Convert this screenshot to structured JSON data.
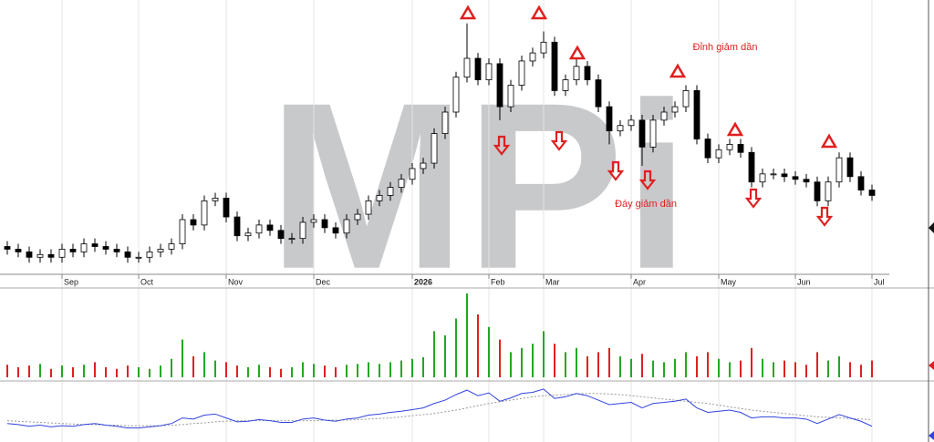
{
  "chart_data": {
    "type": "candlestick",
    "watermark": "MPi",
    "annotations": [
      "Đỉnh giảm dần",
      "Đáy giảm dần"
    ],
    "categories": [
      null,
      null,
      null,
      null,
      null,
      "Sep",
      null,
      null,
      null,
      null,
      null,
      null,
      "Oct",
      null,
      null,
      null,
      null,
      null,
      null,
      null,
      "Nov",
      null,
      null,
      null,
      null,
      null,
      null,
      null,
      "Dec",
      null,
      null,
      null,
      null,
      null,
      null,
      null,
      null,
      "2026",
      null,
      null,
      null,
      null,
      null,
      null,
      "Feb",
      null,
      null,
      null,
      null,
      "Mar",
      null,
      null,
      null,
      null,
      null,
      null,
      null,
      "Apr",
      null,
      null,
      null,
      null,
      null,
      null,
      null,
      "May",
      null,
      null,
      null,
      null,
      null,
      null,
      "Jun",
      null,
      null,
      null,
      null,
      null,
      null,
      "Jul"
    ],
    "open": [
      10,
      9,
      8,
      6,
      7,
      6,
      9,
      8,
      11,
      10,
      9,
      8,
      6,
      6,
      8,
      9,
      11,
      20,
      18,
      27,
      28,
      21,
      14,
      15,
      18,
      16,
      13,
      13,
      19,
      20,
      17,
      15,
      20,
      22,
      27,
      29,
      32,
      35,
      39,
      41,
      52,
      60,
      73,
      80,
      72,
      78,
      62,
      70,
      79,
      82,
      86,
      68,
      72,
      77,
      72,
      62,
      53,
      55,
      57,
      47,
      57,
      60,
      62,
      68,
      50,
      43,
      46,
      48,
      45,
      34,
      37,
      37,
      36,
      35,
      34,
      27,
      34,
      43,
      36,
      31
    ],
    "high": [
      12,
      11,
      10,
      9,
      9,
      11,
      11,
      13,
      13,
      12,
      11,
      10,
      8,
      10,
      11,
      13,
      22,
      22,
      29,
      30,
      30,
      23,
      17,
      20,
      20,
      18,
      15,
      21,
      22,
      22,
      19,
      22,
      24,
      29,
      31,
      34,
      37,
      41,
      43,
      54,
      62,
      75,
      93,
      82,
      80,
      80,
      72,
      81,
      84,
      90,
      88,
      74,
      80,
      79,
      74,
      64,
      57,
      59,
      59,
      59,
      62,
      64,
      70,
      70,
      52,
      48,
      50,
      50,
      47,
      39,
      39,
      39,
      38,
      37,
      36,
      36,
      45,
      45,
      38,
      33
    ],
    "low": [
      7,
      6,
      4,
      4,
      4,
      4,
      6,
      6,
      8,
      7,
      6,
      4,
      4,
      4,
      6,
      7,
      9,
      16,
      16,
      25,
      19,
      12,
      12,
      13,
      14,
      11,
      11,
      11,
      17,
      15,
      13,
      13,
      18,
      20,
      25,
      27,
      30,
      33,
      37,
      39,
      50,
      58,
      71,
      70,
      70,
      57,
      60,
      68,
      77,
      80,
      66,
      66,
      70,
      70,
      60,
      48,
      51,
      53,
      40,
      45,
      55,
      58,
      60,
      48,
      41,
      41,
      44,
      43,
      32,
      32,
      35,
      34,
      33,
      32,
      25,
      25,
      32,
      34,
      29,
      27
    ],
    "close": [
      9,
      8,
      6,
      7,
      6,
      9,
      8,
      11,
      10,
      9,
      8,
      6,
      6,
      8,
      9,
      11,
      20,
      18,
      27,
      28,
      21,
      14,
      15,
      18,
      16,
      13,
      13,
      19,
      20,
      17,
      15,
      20,
      22,
      27,
      29,
      32,
      35,
      39,
      41,
      52,
      60,
      73,
      80,
      72,
      78,
      62,
      70,
      79,
      82,
      86,
      68,
      72,
      77,
      72,
      62,
      53,
      55,
      57,
      47,
      57,
      60,
      62,
      68,
      50,
      43,
      46,
      48,
      45,
      34,
      37,
      37,
      36,
      35,
      34,
      27,
      34,
      43,
      36,
      31,
      29
    ],
    "ylim": [
      0,
      100
    ],
    "volume": [
      15,
      12,
      14,
      16,
      10,
      14,
      12,
      15,
      18,
      12,
      10,
      14,
      12,
      10,
      14,
      22,
      45,
      25,
      30,
      20,
      18,
      14,
      12,
      15,
      12,
      10,
      12,
      18,
      16,
      14,
      12,
      15,
      16,
      18,
      16,
      18,
      20,
      22,
      24,
      55,
      50,
      70,
      100,
      75,
      60,
      45,
      30,
      35,
      40,
      55,
      40,
      30,
      35,
      25,
      30,
      35,
      25,
      22,
      28,
      20,
      18,
      22,
      30,
      25,
      30,
      22,
      18,
      20,
      35,
      22,
      18,
      20,
      18,
      15,
      30,
      20,
      25,
      18,
      15,
      20
    ],
    "volume_ylim": [
      0,
      100
    ],
    "up_color": "#22a822",
    "down_color": "#e02020",
    "indicator": [
      30,
      28,
      25,
      27,
      24,
      26,
      25,
      28,
      30,
      27,
      25,
      22,
      22,
      24,
      26,
      30,
      40,
      38,
      45,
      47,
      40,
      33,
      34,
      37,
      35,
      32,
      32,
      38,
      40,
      36,
      34,
      38,
      40,
      45,
      47,
      50,
      52,
      55,
      58,
      66,
      72,
      82,
      90,
      80,
      85,
      70,
      76,
      84,
      86,
      92,
      75,
      78,
      84,
      80,
      72,
      64,
      66,
      68,
      58,
      66,
      68,
      70,
      74,
      58,
      50,
      52,
      54,
      50,
      40,
      42,
      42,
      40,
      40,
      38,
      30,
      38,
      46,
      40,
      34,
      25
    ],
    "indicator_ma": [
      35,
      34,
      33,
      32,
      31,
      30,
      29,
      28,
      28,
      27,
      27,
      26,
      26,
      26,
      26,
      27,
      28,
      30,
      31,
      33,
      34,
      35,
      35,
      35,
      35,
      35,
      35,
      35,
      35,
      36,
      36,
      36,
      37,
      38,
      39,
      40,
      42,
      44,
      46,
      48,
      51,
      54,
      58,
      62,
      66,
      69,
      72,
      75,
      78,
      80,
      81,
      82,
      83,
      84,
      84,
      83,
      82,
      80,
      78,
      76,
      74,
      72,
      70,
      68,
      66,
      63,
      60,
      57,
      54,
      52,
      50,
      48,
      46,
      44,
      42,
      41,
      40,
      39,
      38,
      37
    ],
    "indicator_ylim": [
      0,
      100
    ],
    "indicator_color": "#3344dd",
    "indicator_ma_color": "#999999"
  }
}
